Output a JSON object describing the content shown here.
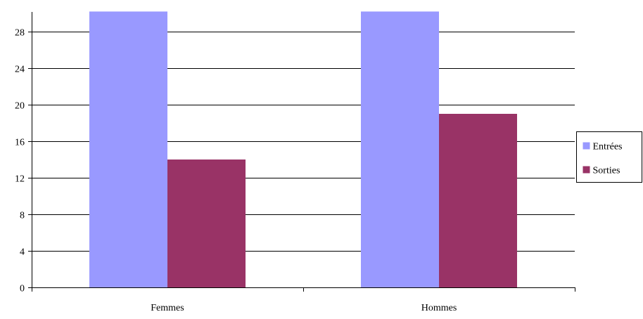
{
  "chart_data": {
    "type": "bar",
    "categories": [
      "Femmes",
      "Hommes"
    ],
    "series": [
      {
        "name": "Entrées",
        "values": [
          30.2,
          30.2
        ],
        "color": "#9999ff"
      },
      {
        "name": "Sorties",
        "values": [
          14,
          19
        ],
        "color": "#993366"
      }
    ],
    "yticks": [
      0,
      4,
      8,
      12,
      16,
      20,
      24,
      28
    ],
    "ylim": [
      0,
      30.2
    ],
    "grid": true,
    "legend_position": "right"
  }
}
